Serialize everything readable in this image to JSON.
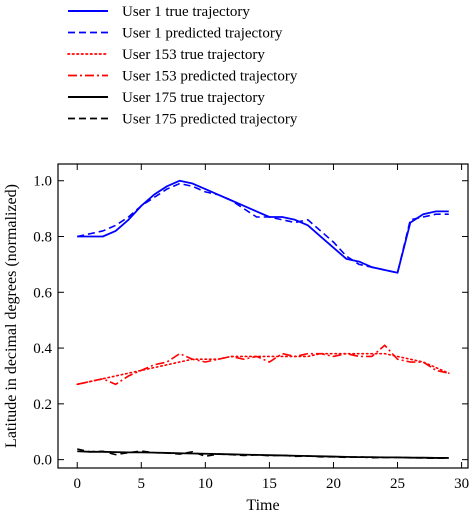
{
  "chart_data": {
    "type": "line",
    "xlabel": "Time",
    "ylabel": "Latitude in decimal degrees (normalized)",
    "xlim": [
      -1.5,
      30.5
    ],
    "ylim": [
      -0.03,
      1.06
    ],
    "xticks": [
      0,
      5,
      10,
      15,
      20,
      25,
      30
    ],
    "xtick_labels": [
      "0",
      "5",
      "10",
      "15",
      "20",
      "25",
      "30"
    ],
    "yticks": [
      0.0,
      0.2,
      0.4,
      0.6,
      0.8,
      1.0
    ],
    "ytick_labels": [
      "0.0",
      "0.2",
      "0.4",
      "0.6",
      "0.8",
      "1.0"
    ],
    "grid": false,
    "legend_position": "top, outside plot",
    "series": [
      {
        "name": "User 1 true trajectory",
        "color": "#0000ff",
        "style": "solid",
        "x": [
          0,
          1,
          2,
          3,
          4,
          5,
          6,
          7,
          8,
          9,
          10,
          11,
          12,
          13,
          14,
          15,
          16,
          17,
          18,
          19,
          20,
          21,
          22,
          23,
          24,
          25,
          26,
          27,
          28,
          29
        ],
        "y": [
          0.8,
          0.8,
          0.8,
          0.82,
          0.86,
          0.91,
          0.95,
          0.98,
          1.0,
          0.99,
          0.97,
          0.95,
          0.93,
          0.91,
          0.89,
          0.87,
          0.87,
          0.86,
          0.84,
          0.8,
          0.76,
          0.72,
          0.71,
          0.69,
          0.68,
          0.67,
          0.85,
          0.88,
          0.89,
          0.89
        ]
      },
      {
        "name": "User 1 predicted trajectory",
        "color": "#0000ff",
        "style": "dashed",
        "x": [
          0,
          1,
          2,
          3,
          4,
          5,
          6,
          7,
          8,
          9,
          10,
          11,
          12,
          13,
          14,
          15,
          16,
          17,
          18,
          19,
          20,
          21,
          22,
          23,
          24,
          25,
          26,
          27,
          28,
          29
        ],
        "y": [
          0.8,
          0.81,
          0.82,
          0.84,
          0.87,
          0.91,
          0.94,
          0.97,
          0.99,
          0.98,
          0.96,
          0.95,
          0.93,
          0.9,
          0.87,
          0.87,
          0.86,
          0.85,
          0.86,
          0.82,
          0.78,
          0.73,
          0.7,
          0.69,
          0.68,
          0.67,
          0.86,
          0.87,
          0.88,
          0.88
        ]
      },
      {
        "name": "User 153 true trajectory",
        "color": "#ff0000",
        "style": "dotted",
        "x": [
          0,
          1,
          2,
          3,
          4,
          5,
          6,
          7,
          8,
          9,
          10,
          11,
          12,
          13,
          14,
          15,
          16,
          17,
          18,
          19,
          20,
          21,
          22,
          23,
          24,
          25,
          26,
          27,
          28,
          29
        ],
        "y": [
          0.27,
          0.28,
          0.29,
          0.3,
          0.31,
          0.32,
          0.33,
          0.34,
          0.35,
          0.36,
          0.36,
          0.36,
          0.37,
          0.37,
          0.37,
          0.37,
          0.37,
          0.37,
          0.37,
          0.38,
          0.38,
          0.38,
          0.38,
          0.38,
          0.38,
          0.37,
          0.36,
          0.35,
          0.33,
          0.31
        ]
      },
      {
        "name": "User 153 predicted trajectory",
        "color": "#ff0000",
        "style": "dashdot",
        "x": [
          0,
          1,
          2,
          3,
          4,
          5,
          6,
          7,
          8,
          9,
          10,
          11,
          12,
          13,
          14,
          15,
          16,
          17,
          18,
          19,
          20,
          21,
          22,
          23,
          24,
          25,
          26,
          27,
          28,
          29
        ],
        "y": [
          0.27,
          0.28,
          0.29,
          0.27,
          0.3,
          0.32,
          0.34,
          0.35,
          0.38,
          0.36,
          0.35,
          0.36,
          0.37,
          0.36,
          0.37,
          0.35,
          0.38,
          0.37,
          0.38,
          0.38,
          0.37,
          0.38,
          0.37,
          0.37,
          0.41,
          0.36,
          0.35,
          0.35,
          0.32,
          0.31
        ]
      },
      {
        "name": "User 175 true trajectory",
        "color": "#000000",
        "style": "solid",
        "x": [
          0,
          1,
          2,
          3,
          4,
          5,
          6,
          7,
          8,
          9,
          10,
          11,
          12,
          13,
          14,
          15,
          16,
          17,
          18,
          19,
          20,
          21,
          22,
          23,
          24,
          25,
          26,
          27,
          28,
          29
        ],
        "y": [
          0.03,
          0.028,
          0.028,
          0.027,
          0.026,
          0.026,
          0.025,
          0.024,
          0.023,
          0.022,
          0.021,
          0.02,
          0.019,
          0.018,
          0.017,
          0.016,
          0.015,
          0.014,
          0.013,
          0.012,
          0.011,
          0.01,
          0.009,
          0.009,
          0.008,
          0.008,
          0.007,
          0.007,
          0.006,
          0.006
        ]
      },
      {
        "name": "User 175 predicted trajectory",
        "color": "#000000",
        "style": "dashed",
        "x": [
          0,
          1,
          2,
          3,
          4,
          5,
          6,
          7,
          8,
          9,
          10,
          11,
          12,
          13,
          14,
          15,
          16,
          17,
          18,
          19,
          20,
          21,
          22,
          23,
          24,
          25,
          26,
          27,
          28,
          29
        ],
        "y": [
          0.038,
          0.028,
          0.03,
          0.018,
          0.025,
          0.031,
          0.025,
          0.024,
          0.02,
          0.028,
          0.012,
          0.02,
          0.018,
          0.015,
          0.017,
          0.014,
          0.016,
          0.012,
          0.013,
          0.01,
          0.01,
          0.008,
          0.01,
          0.007,
          0.008,
          0.008,
          0.007,
          0.006,
          0.005,
          0.005
        ]
      }
    ]
  }
}
